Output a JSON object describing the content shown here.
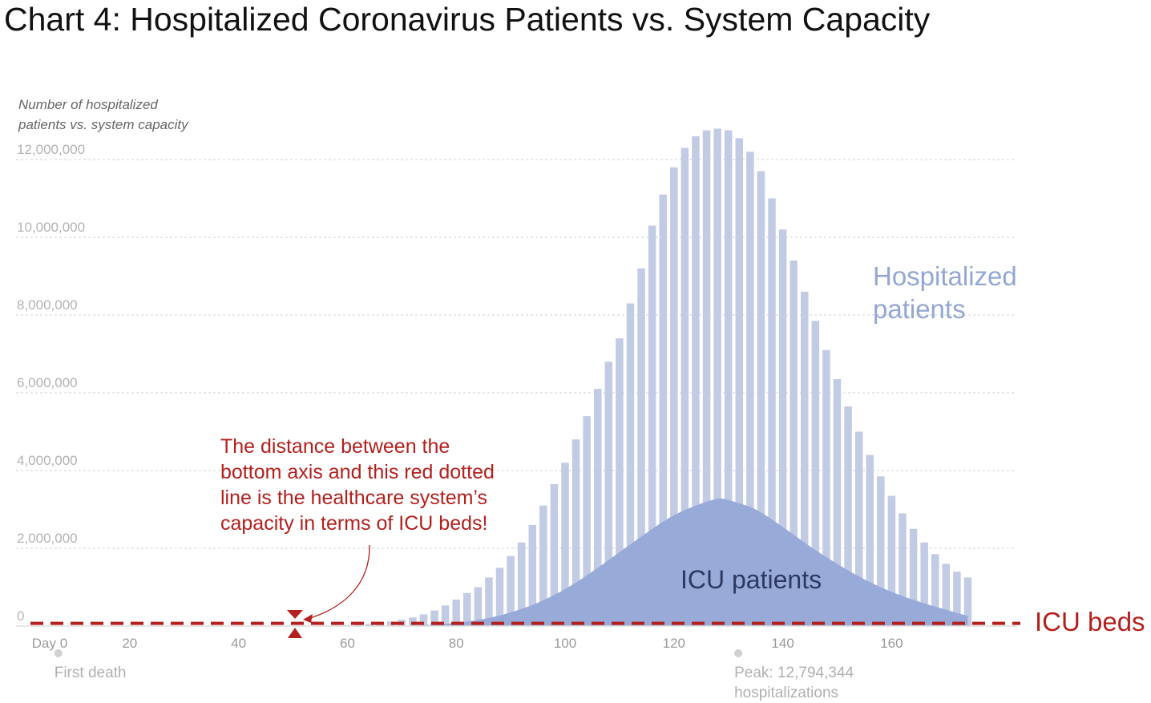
{
  "chart_data": {
    "type": "bar",
    "title": "Chart 4: Hospitalized Coronavirus Patients vs. System Capacity",
    "ylabel_lines": [
      "Number of hospitalized",
      "patients vs. system capacity"
    ],
    "ylim": [
      0,
      12000000
    ],
    "y_ticks": [
      {
        "value": 0,
        "label": "0"
      },
      {
        "value": 2000000,
        "label": "2,000,000"
      },
      {
        "value": 4000000,
        "label": "4,000,000"
      },
      {
        "value": 6000000,
        "label": "6,000,000"
      },
      {
        "value": 8000000,
        "label": "8,000,000"
      },
      {
        "value": 10000000,
        "label": "10,000,000"
      },
      {
        "value": 12000000,
        "label": "12,000,000"
      }
    ],
    "x_ticks": [
      {
        "value": 0,
        "label": "Day 0"
      },
      {
        "value": 20,
        "label": "20"
      },
      {
        "value": 40,
        "label": "40"
      },
      {
        "value": 60,
        "label": "60"
      },
      {
        "value": 80,
        "label": "80"
      },
      {
        "value": 100,
        "label": "100"
      },
      {
        "value": 120,
        "label": "120"
      },
      {
        "value": 140,
        "label": "140"
      },
      {
        "value": 160,
        "label": "160"
      }
    ],
    "grid": true,
    "series": [
      {
        "name": "Hospitalized patients",
        "label_lines": [
          "Hospitalized",
          "patients"
        ],
        "type": "bar",
        "color": "#c2cbe4",
        "x": [
          52,
          54,
          56,
          58,
          60,
          62,
          64,
          66,
          68,
          70,
          72,
          74,
          76,
          78,
          80,
          82,
          84,
          86,
          88,
          90,
          92,
          94,
          96,
          98,
          100,
          102,
          104,
          106,
          108,
          110,
          112,
          114,
          116,
          118,
          120,
          122,
          124,
          126,
          128,
          130,
          132,
          134,
          136,
          138,
          140,
          142,
          144,
          146,
          148,
          150,
          152,
          154,
          156,
          158,
          160,
          162,
          164,
          166,
          168,
          170,
          172,
          174
        ],
        "values": [
          5000,
          8000,
          12000,
          18000,
          26000,
          38000,
          55000,
          80000,
          115000,
          160000,
          220000,
          300000,
          400000,
          530000,
          680000,
          850000,
          1000000,
          1250000,
          1500000,
          1800000,
          2150000,
          2600000,
          3100000,
          3650000,
          4200000,
          4800000,
          5400000,
          6100000,
          6800000,
          7400000,
          8300000,
          9200000,
          10300000,
          11100000,
          11800000,
          12300000,
          12600000,
          12750000,
          12794344,
          12750000,
          12550000,
          12200000,
          11700000,
          11000000,
          10200000,
          9400000,
          8600000,
          7850000,
          7100000,
          6350000,
          5650000,
          5000000,
          4400000,
          3850000,
          3350000,
          2900000,
          2500000,
          2150000,
          1850000,
          1600000,
          1400000,
          1250000
        ]
      },
      {
        "name": "ICU patients",
        "label": "ICU patients",
        "type": "area",
        "color": "#97aad8",
        "x": [
          70,
          75,
          80,
          85,
          90,
          95,
          100,
          105,
          110,
          115,
          120,
          125,
          128,
          130,
          135,
          140,
          145,
          150,
          155,
          160,
          165,
          170,
          174
        ],
        "values": [
          0,
          30000,
          80000,
          180000,
          350000,
          600000,
          950000,
          1400000,
          1900000,
          2400000,
          2850000,
          3150000,
          3270000,
          3240000,
          3000000,
          2550000,
          2050000,
          1600000,
          1200000,
          880000,
          630000,
          420000,
          260000
        ]
      }
    ],
    "capacity": {
      "label": "ICU beds",
      "value": 70000,
      "color": "#b3201d"
    },
    "annotations": {
      "capacity_note": [
        "The distance between the",
        "bottom axis and this red dotted",
        "line is the healthcare system’s",
        "capacity in terms of ICU beds!"
      ],
      "first_death": {
        "day": 6,
        "text": "First death"
      },
      "peak": {
        "day": 128,
        "lines": [
          "Peak: 12,794,344",
          "hospitalizations"
        ]
      }
    }
  }
}
